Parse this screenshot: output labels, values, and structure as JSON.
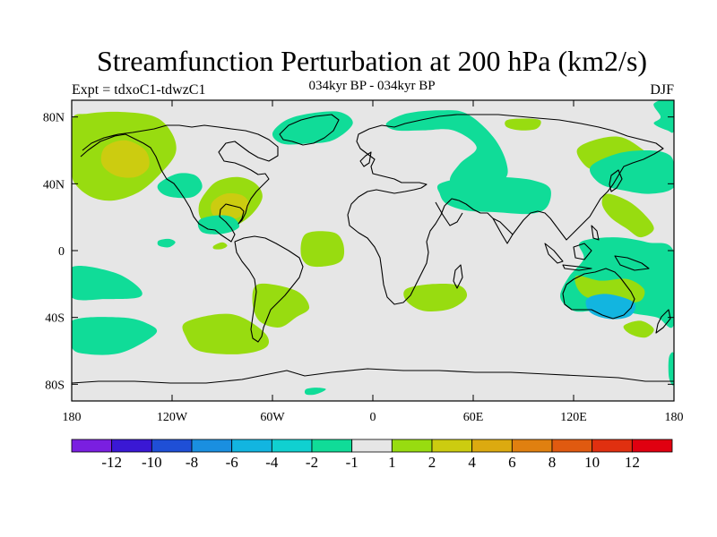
{
  "title": "Streamfunction Perturbation at 200 hPa (km2/s)",
  "left_label": "Expt = tdxoC1-tdwzC1",
  "center_label": "034kyr BP - 034kyr BP",
  "right_label": "DJF",
  "chart_data": {
    "type": "contour_map",
    "projection": "cylindrical equidistant",
    "lon_range": [
      -180,
      180
    ],
    "lat_range": [
      -90,
      90
    ],
    "x_ticks": [
      {
        "lon": -180,
        "label": "180"
      },
      {
        "lon": -120,
        "label": "120W"
      },
      {
        "lon": -60,
        "label": "60W"
      },
      {
        "lon": 0,
        "label": "0"
      },
      {
        "lon": 60,
        "label": "60E"
      },
      {
        "lon": 120,
        "label": "120E"
      },
      {
        "lon": 180,
        "label": "180"
      }
    ],
    "y_ticks": [
      {
        "lat": 80,
        "label": "80N"
      },
      {
        "lat": 40,
        "label": "40N"
      },
      {
        "lat": 0,
        "label": "0"
      },
      {
        "lat": -40,
        "label": "40S"
      },
      {
        "lat": -80,
        "label": "80S"
      }
    ],
    "colorbar": {
      "colors": [
        "#7a1fe0",
        "#3a18d4",
        "#1f4fd6",
        "#1a8fe0",
        "#12b5e0",
        "#10d0d0",
        "#10dc98",
        "#e6e6e6",
        "#98dc10",
        "#cccc10",
        "#dcaa10",
        "#e08010",
        "#e05a10",
        "#e03010",
        "#e00010"
      ],
      "labels": [
        "-12",
        "-10",
        "-8",
        "-6",
        "-4",
        "-2",
        "-1",
        "1",
        "2",
        "4",
        "6",
        "8",
        "10",
        "12"
      ]
    },
    "regions": [
      {
        "level": 2,
        "color": "#98dc10",
        "points": [
          [
            -180,
            78
          ],
          [
            -170,
            82
          ],
          [
            -150,
            83
          ],
          [
            -130,
            80
          ],
          [
            -120,
            70
          ],
          [
            -118,
            58
          ],
          [
            -128,
            45
          ],
          [
            -140,
            35
          ],
          [
            -155,
            30
          ],
          [
            -168,
            32
          ],
          [
            -178,
            40
          ],
          [
            -180,
            50
          ]
        ]
      },
      {
        "level": 4,
        "color": "#cccc10",
        "points": [
          [
            -160,
            62
          ],
          [
            -148,
            66
          ],
          [
            -136,
            60
          ],
          [
            -134,
            50
          ],
          [
            -142,
            44
          ],
          [
            -154,
            45
          ],
          [
            -162,
            52
          ]
        ]
      },
      {
        "level": 2,
        "color": "#98dc10",
        "points": [
          [
            -99,
            36
          ],
          [
            -92,
            42
          ],
          [
            -80,
            44
          ],
          [
            -70,
            40
          ],
          [
            -66,
            32
          ],
          [
            -72,
            22
          ],
          [
            -82,
            15
          ],
          [
            -92,
            14
          ],
          [
            -102,
            18
          ],
          [
            -104,
            27
          ]
        ]
      },
      {
        "level": 4,
        "color": "#cccc10",
        "points": [
          [
            -96,
            29
          ],
          [
            -88,
            34
          ],
          [
            -78,
            33
          ],
          [
            -74,
            27
          ],
          [
            -80,
            20
          ],
          [
            -90,
            19
          ],
          [
            -96,
            22
          ]
        ]
      },
      {
        "level": -2,
        "color": "#10dc98",
        "points": [
          [
            -128,
            40
          ],
          [
            -117,
            46
          ],
          [
            -106,
            45
          ],
          [
            -102,
            38
          ],
          [
            -108,
            32
          ],
          [
            -120,
            32
          ],
          [
            -127,
            35
          ]
        ]
      },
      {
        "level": -2,
        "color": "#10dc98",
        "points": [
          [
            -60,
            70
          ],
          [
            -52,
            78
          ],
          [
            -38,
            82
          ],
          [
            -20,
            83
          ],
          [
            -12,
            76
          ],
          [
            -24,
            66
          ],
          [
            -40,
            64
          ],
          [
            -54,
            64
          ]
        ]
      },
      {
        "level": -2,
        "color": "#10dc98",
        "points": [
          [
            -104,
            18
          ],
          [
            -94,
            21
          ],
          [
            -84,
            20
          ],
          [
            -80,
            14
          ],
          [
            -90,
            10
          ],
          [
            -102,
            11
          ]
        ]
      },
      {
        "level": -2,
        "color": "#10dc98",
        "points": [
          [
            -128,
            6
          ],
          [
            -122,
            7
          ],
          [
            -118,
            5
          ],
          [
            -122,
            2
          ],
          [
            -128,
            3
          ]
        ]
      },
      {
        "level": -2,
        "color": "#10dc98",
        "points": [
          [
            -56,
            -33
          ],
          [
            -48,
            -35
          ],
          [
            -46,
            -39
          ],
          [
            -52,
            -41
          ],
          [
            -58,
            -39
          ]
        ]
      },
      {
        "level": -2,
        "color": "#10dc98",
        "points": [
          [
            -180,
            -10
          ],
          [
            -155,
            -13
          ],
          [
            -140,
            -22
          ],
          [
            -140,
            -28
          ],
          [
            -160,
            -29
          ],
          [
            -180,
            -28
          ]
        ]
      },
      {
        "level": -2,
        "color": "#10dc98",
        "points": [
          [
            -180,
            -42
          ],
          [
            -150,
            -40
          ],
          [
            -134,
            -44
          ],
          [
            -130,
            -50
          ],
          [
            -150,
            -61
          ],
          [
            -170,
            -62
          ],
          [
            -180,
            -58
          ]
        ]
      },
      {
        "level": -2,
        "color": "#10dc98",
        "points": [
          [
            -40,
            -83
          ],
          [
            -34,
            -82
          ],
          [
            -28,
            -83
          ],
          [
            -34,
            -86
          ],
          [
            -40,
            -86
          ]
        ]
      },
      {
        "level": 2,
        "color": "#98dc10",
        "points": [
          [
            -112,
            -43
          ],
          [
            -92,
            -38
          ],
          [
            -78,
            -40
          ],
          [
            -64,
            -50
          ],
          [
            -64,
            -58
          ],
          [
            -80,
            -62
          ],
          [
            -104,
            -60
          ],
          [
            -112,
            -51
          ]
        ]
      },
      {
        "level": 2,
        "color": "#98dc10",
        "points": [
          [
            -40,
            10
          ],
          [
            -24,
            11
          ],
          [
            -18,
            5
          ],
          [
            -18,
            -5
          ],
          [
            -26,
            -9
          ],
          [
            -38,
            -9
          ],
          [
            -43,
            -2
          ]
        ]
      },
      {
        "level": 2,
        "color": "#98dc10",
        "points": [
          [
            -68,
            -20
          ],
          [
            -46,
            -24
          ],
          [
            -38,
            -34
          ],
          [
            -46,
            -40
          ],
          [
            -56,
            -46
          ],
          [
            -68,
            -42
          ],
          [
            -72,
            -30
          ]
        ]
      },
      {
        "level": 2,
        "color": "#98dc10",
        "points": [
          [
            -95,
            3
          ],
          [
            -90,
            5
          ],
          [
            -87,
            3
          ],
          [
            -90,
            1
          ],
          [
            -95,
            1
          ]
        ]
      },
      {
        "level": 2,
        "color": "#98dc10",
        "points": [
          [
            20,
            -23
          ],
          [
            36,
            -20
          ],
          [
            52,
            -21
          ],
          [
            56,
            -28
          ],
          [
            46,
            -35
          ],
          [
            30,
            -36
          ],
          [
            20,
            -30
          ]
        ]
      },
      {
        "level": -2,
        "color": "#10dc98",
        "points": [
          [
            8,
            76
          ],
          [
            20,
            82
          ],
          [
            40,
            84
          ],
          [
            56,
            82
          ],
          [
            72,
            68
          ],
          [
            80,
            52
          ],
          [
            78,
            42
          ],
          [
            60,
            34
          ],
          [
            52,
            32
          ],
          [
            46,
            42
          ],
          [
            52,
            52
          ],
          [
            62,
            62
          ],
          [
            48,
            72
          ],
          [
            30,
            72
          ],
          [
            14,
            72
          ]
        ]
      },
      {
        "level": -2,
        "color": "#10dc98",
        "points": [
          [
            40,
            40
          ],
          [
            58,
            44
          ],
          [
            78,
            44
          ],
          [
            96,
            42
          ],
          [
            106,
            37
          ],
          [
            104,
            26
          ],
          [
            94,
            22
          ],
          [
            74,
            23
          ],
          [
            56,
            24
          ],
          [
            44,
            28
          ],
          [
            40,
            34
          ]
        ]
      },
      {
        "level": 2,
        "color": "#98dc10",
        "points": [
          [
            80,
            78
          ],
          [
            90,
            79
          ],
          [
            100,
            78
          ],
          [
            98,
            73
          ],
          [
            88,
            72
          ],
          [
            80,
            74
          ]
        ]
      },
      {
        "level": 2,
        "color": "#98dc10",
        "points": [
          [
            122,
            60
          ],
          [
            132,
            66
          ],
          [
            148,
            68
          ],
          [
            162,
            60
          ],
          [
            170,
            52
          ],
          [
            165,
            48
          ],
          [
            150,
            50
          ],
          [
            138,
            48
          ],
          [
            128,
            50
          ]
        ]
      },
      {
        "level": -2,
        "color": "#10dc98",
        "points": [
          [
            130,
            50
          ],
          [
            146,
            58
          ],
          [
            164,
            60
          ],
          [
            176,
            58
          ],
          [
            180,
            52
          ],
          [
            180,
            38
          ],
          [
            166,
            34
          ],
          [
            150,
            36
          ],
          [
            136,
            40
          ]
        ]
      },
      {
        "level": -2,
        "color": "#10dc98",
        "points": [
          [
            168,
            88
          ],
          [
            172,
            80
          ],
          [
            168,
            76
          ],
          [
            176,
            72
          ],
          [
            180,
            72
          ],
          [
            180,
            90
          ]
        ]
      },
      {
        "level": 2,
        "color": "#98dc10",
        "points": [
          [
            140,
            34
          ],
          [
            152,
            30
          ],
          [
            162,
            22
          ],
          [
            168,
            13
          ],
          [
            160,
            8
          ],
          [
            152,
            13
          ],
          [
            142,
            20
          ],
          [
            137,
            28
          ]
        ]
      },
      {
        "level": -2,
        "color": "#10dc98",
        "points": [
          [
            124,
            5
          ],
          [
            144,
            8
          ],
          [
            164,
            5
          ],
          [
            180,
            -1
          ],
          [
            180,
            -44
          ],
          [
            170,
            -40
          ],
          [
            158,
            -38
          ],
          [
            148,
            -36
          ],
          [
            132,
            -36
          ],
          [
            120,
            -36
          ],
          [
            112,
            -28
          ],
          [
            117,
            -16
          ],
          [
            126,
            -5
          ]
        ]
      },
      {
        "level": 2,
        "color": "#98dc10",
        "points": [
          [
            122,
            -15
          ],
          [
            136,
            -18
          ],
          [
            152,
            -17
          ],
          [
            162,
            -23
          ],
          [
            160,
            -30
          ],
          [
            150,
            -31
          ],
          [
            140,
            -30
          ],
          [
            128,
            -28
          ],
          [
            122,
            -22
          ]
        ]
      },
      {
        "level": -4,
        "color": "#12b5e0",
        "points": [
          [
            128,
            -29
          ],
          [
            140,
            -26
          ],
          [
            156,
            -31
          ],
          [
            154,
            -39
          ],
          [
            142,
            -41
          ],
          [
            130,
            -37
          ]
        ]
      },
      {
        "level": 2,
        "color": "#98dc10",
        "points": [
          [
            150,
            -45
          ],
          [
            160,
            -42
          ],
          [
            168,
            -47
          ],
          [
            163,
            -52
          ],
          [
            154,
            -50
          ]
        ]
      },
      {
        "level": -2,
        "color": "#10dc98",
        "points": [
          [
            177,
            -64
          ],
          [
            180,
            -62
          ],
          [
            180,
            -80
          ],
          [
            177,
            -76
          ]
        ]
      }
    ]
  }
}
